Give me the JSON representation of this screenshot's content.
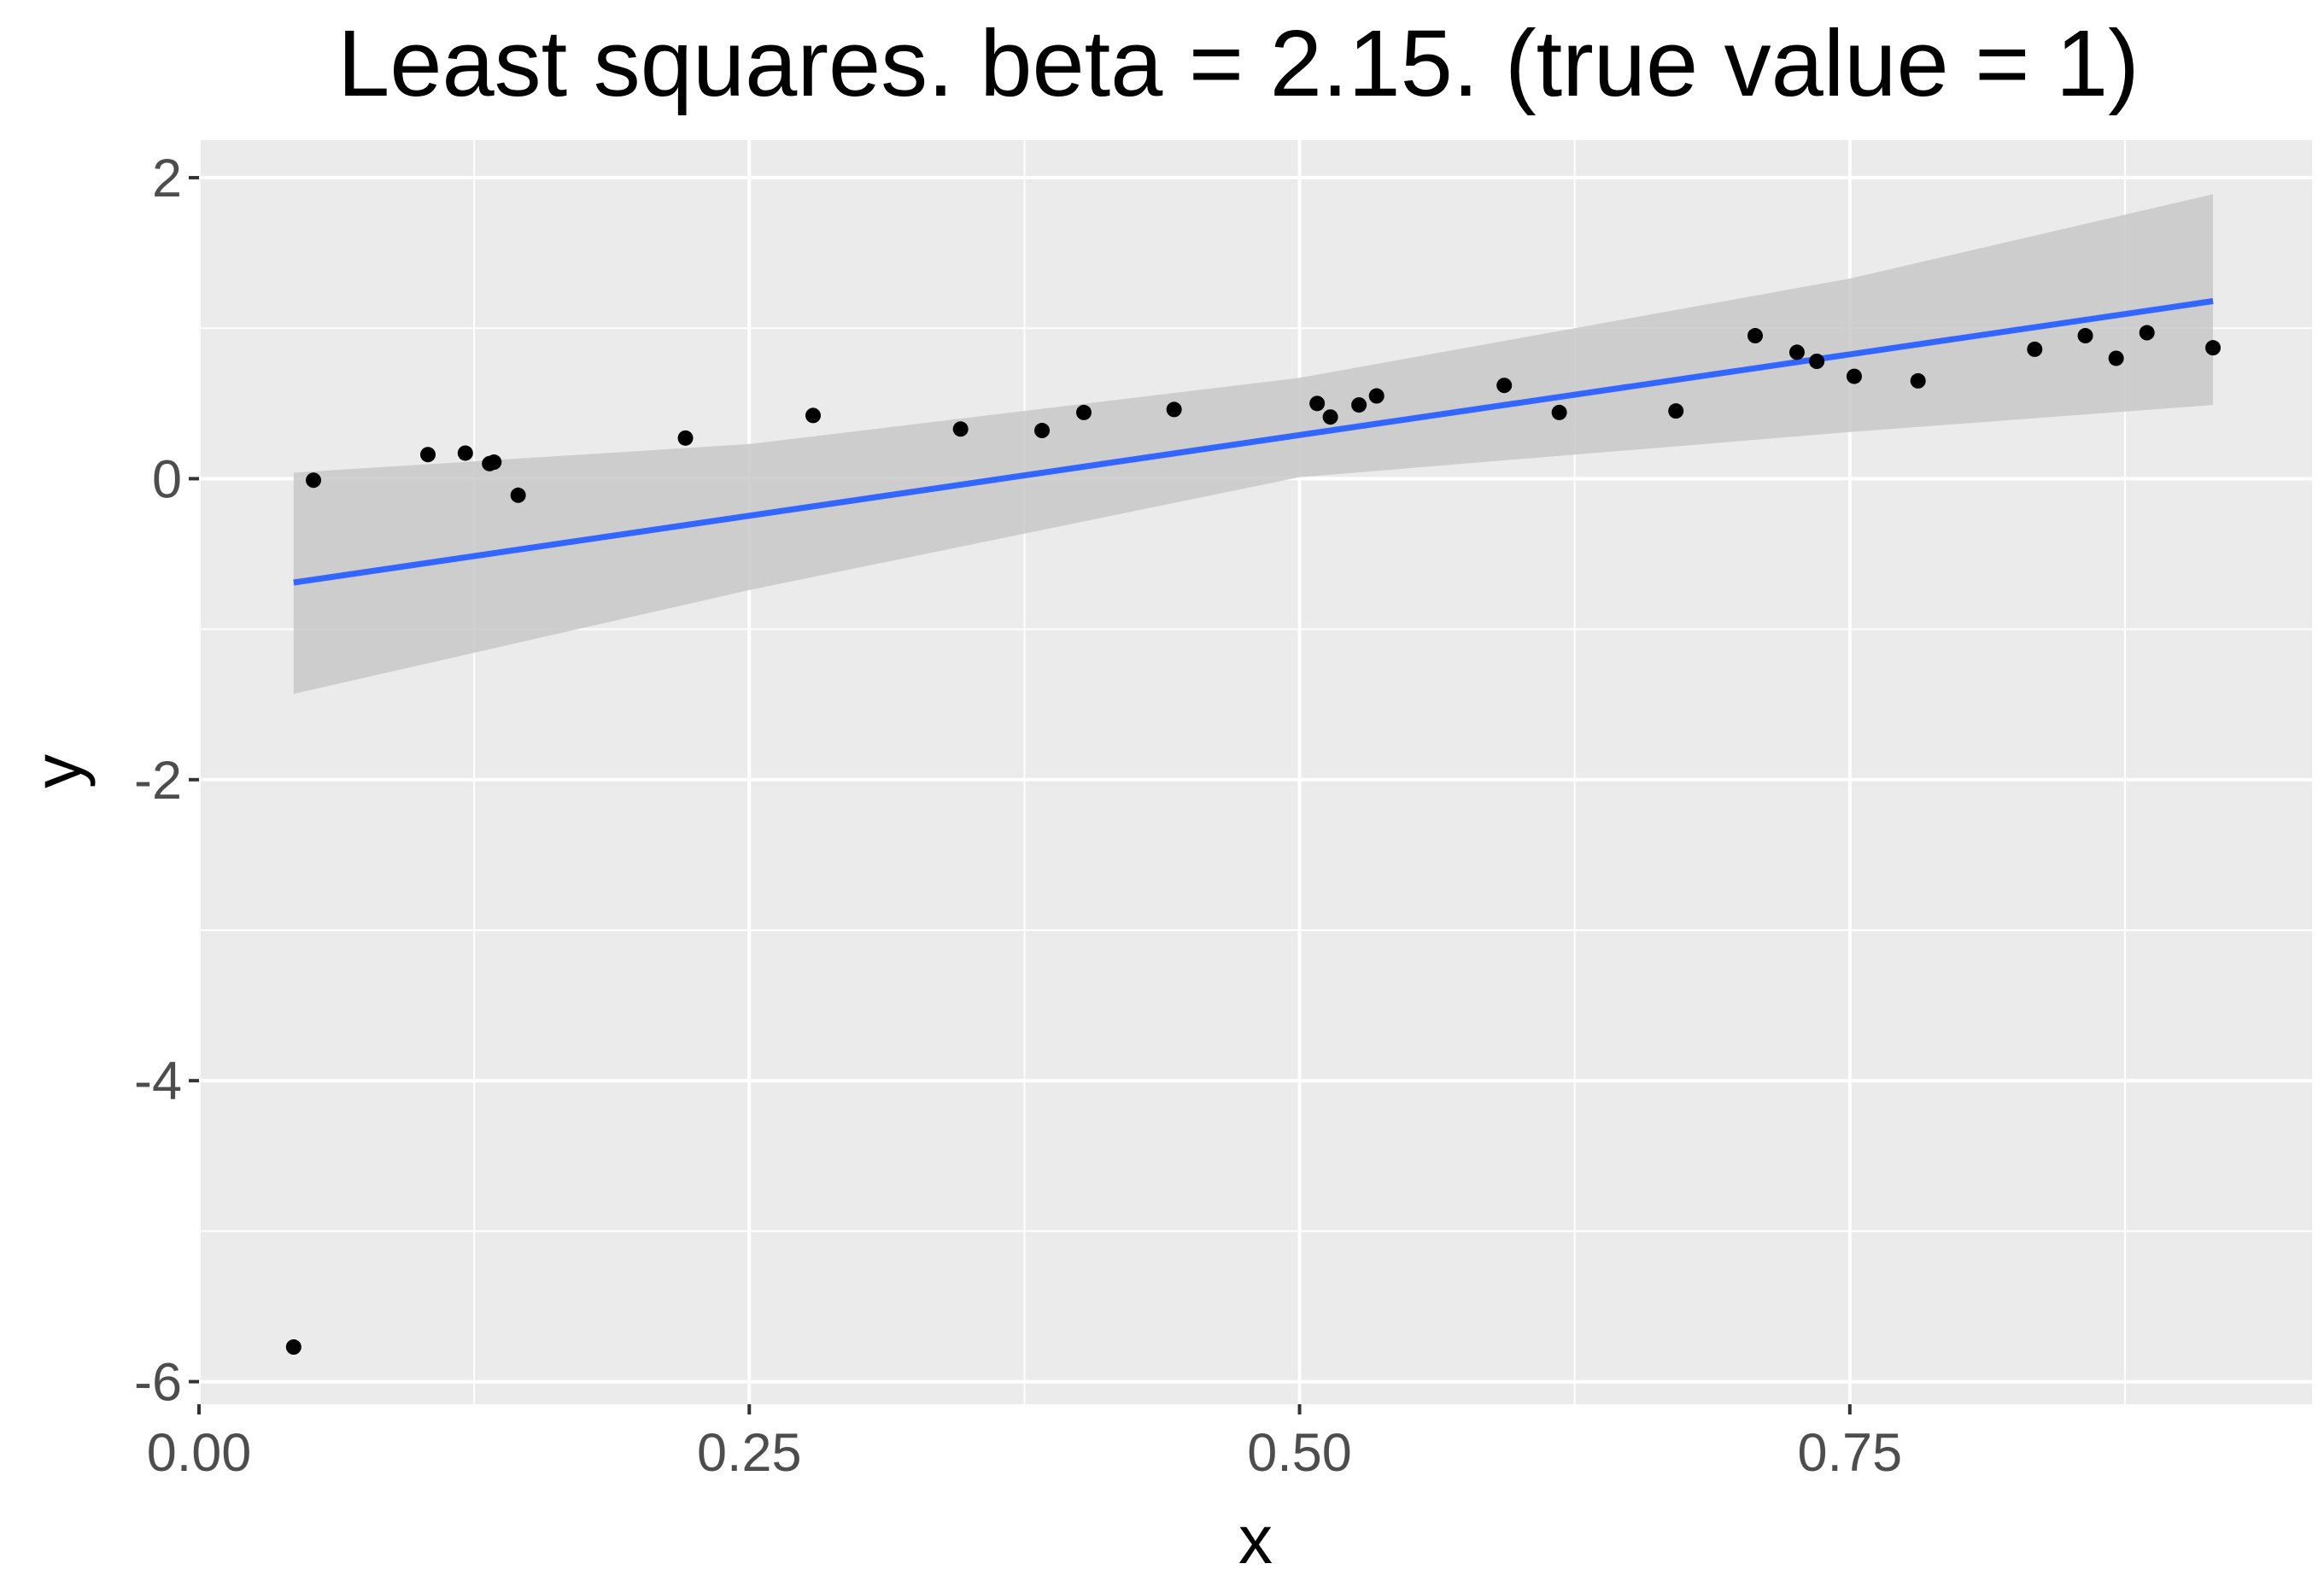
{
  "chart_data": {
    "type": "scatter",
    "title": "Least squares. beta = 2.15. (true value = 1)",
    "xlabel": "x",
    "ylabel": "y",
    "xlim": [
      0.0,
      0.96
    ],
    "ylim": [
      -6.15,
      2.25
    ],
    "x_ticks": [
      0.0,
      0.25,
      0.5,
      0.75
    ],
    "x_tick_labels": [
      "0.00",
      "0.25",
      "0.50",
      "0.75"
    ],
    "y_ticks": [
      -6,
      -4,
      -2,
      0,
      2
    ],
    "y_tick_labels": [
      "-6",
      "-4",
      "-2",
      "0",
      "2"
    ],
    "grid": true,
    "legend": "none",
    "colors": {
      "panel": "#ebebeb",
      "grid": "#ffffff",
      "points": "#000000",
      "fit_line": "#3366ff",
      "ribbon": "#c8c8c8",
      "tick_text": "#4d4d4d"
    },
    "points": [
      {
        "x": 0.043,
        "y": -5.77
      },
      {
        "x": 0.052,
        "y": -0.01
      },
      {
        "x": 0.104,
        "y": 0.16
      },
      {
        "x": 0.121,
        "y": 0.17
      },
      {
        "x": 0.132,
        "y": 0.1
      },
      {
        "x": 0.134,
        "y": 0.11
      },
      {
        "x": 0.145,
        "y": -0.11
      },
      {
        "x": 0.221,
        "y": 0.27
      },
      {
        "x": 0.279,
        "y": 0.42
      },
      {
        "x": 0.346,
        "y": 0.33
      },
      {
        "x": 0.383,
        "y": 0.32
      },
      {
        "x": 0.402,
        "y": 0.44
      },
      {
        "x": 0.443,
        "y": 0.46
      },
      {
        "x": 0.508,
        "y": 0.5
      },
      {
        "x": 0.514,
        "y": 0.41
      },
      {
        "x": 0.527,
        "y": 0.49
      },
      {
        "x": 0.535,
        "y": 0.55
      },
      {
        "x": 0.593,
        "y": 0.62
      },
      {
        "x": 0.618,
        "y": 0.44
      },
      {
        "x": 0.671,
        "y": 0.45
      },
      {
        "x": 0.707,
        "y": 0.95
      },
      {
        "x": 0.726,
        "y": 0.84
      },
      {
        "x": 0.735,
        "y": 0.78
      },
      {
        "x": 0.752,
        "y": 0.68
      },
      {
        "x": 0.781,
        "y": 0.65
      },
      {
        "x": 0.834,
        "y": 0.86
      },
      {
        "x": 0.857,
        "y": 0.95
      },
      {
        "x": 0.871,
        "y": 0.8
      },
      {
        "x": 0.885,
        "y": 0.97
      },
      {
        "x": 0.915,
        "y": 0.87
      }
    ],
    "fit_line": {
      "x": [
        0.043,
        0.915
      ],
      "y": [
        -0.69,
        1.18
      ]
    },
    "confidence_band": {
      "x": [
        0.043,
        0.25,
        0.5,
        0.75,
        0.915
      ],
      "lower": [
        -1.43,
        -0.74,
        0.01,
        0.31,
        0.49
      ],
      "upper": [
        0.04,
        0.23,
        0.67,
        1.33,
        1.89
      ]
    }
  }
}
